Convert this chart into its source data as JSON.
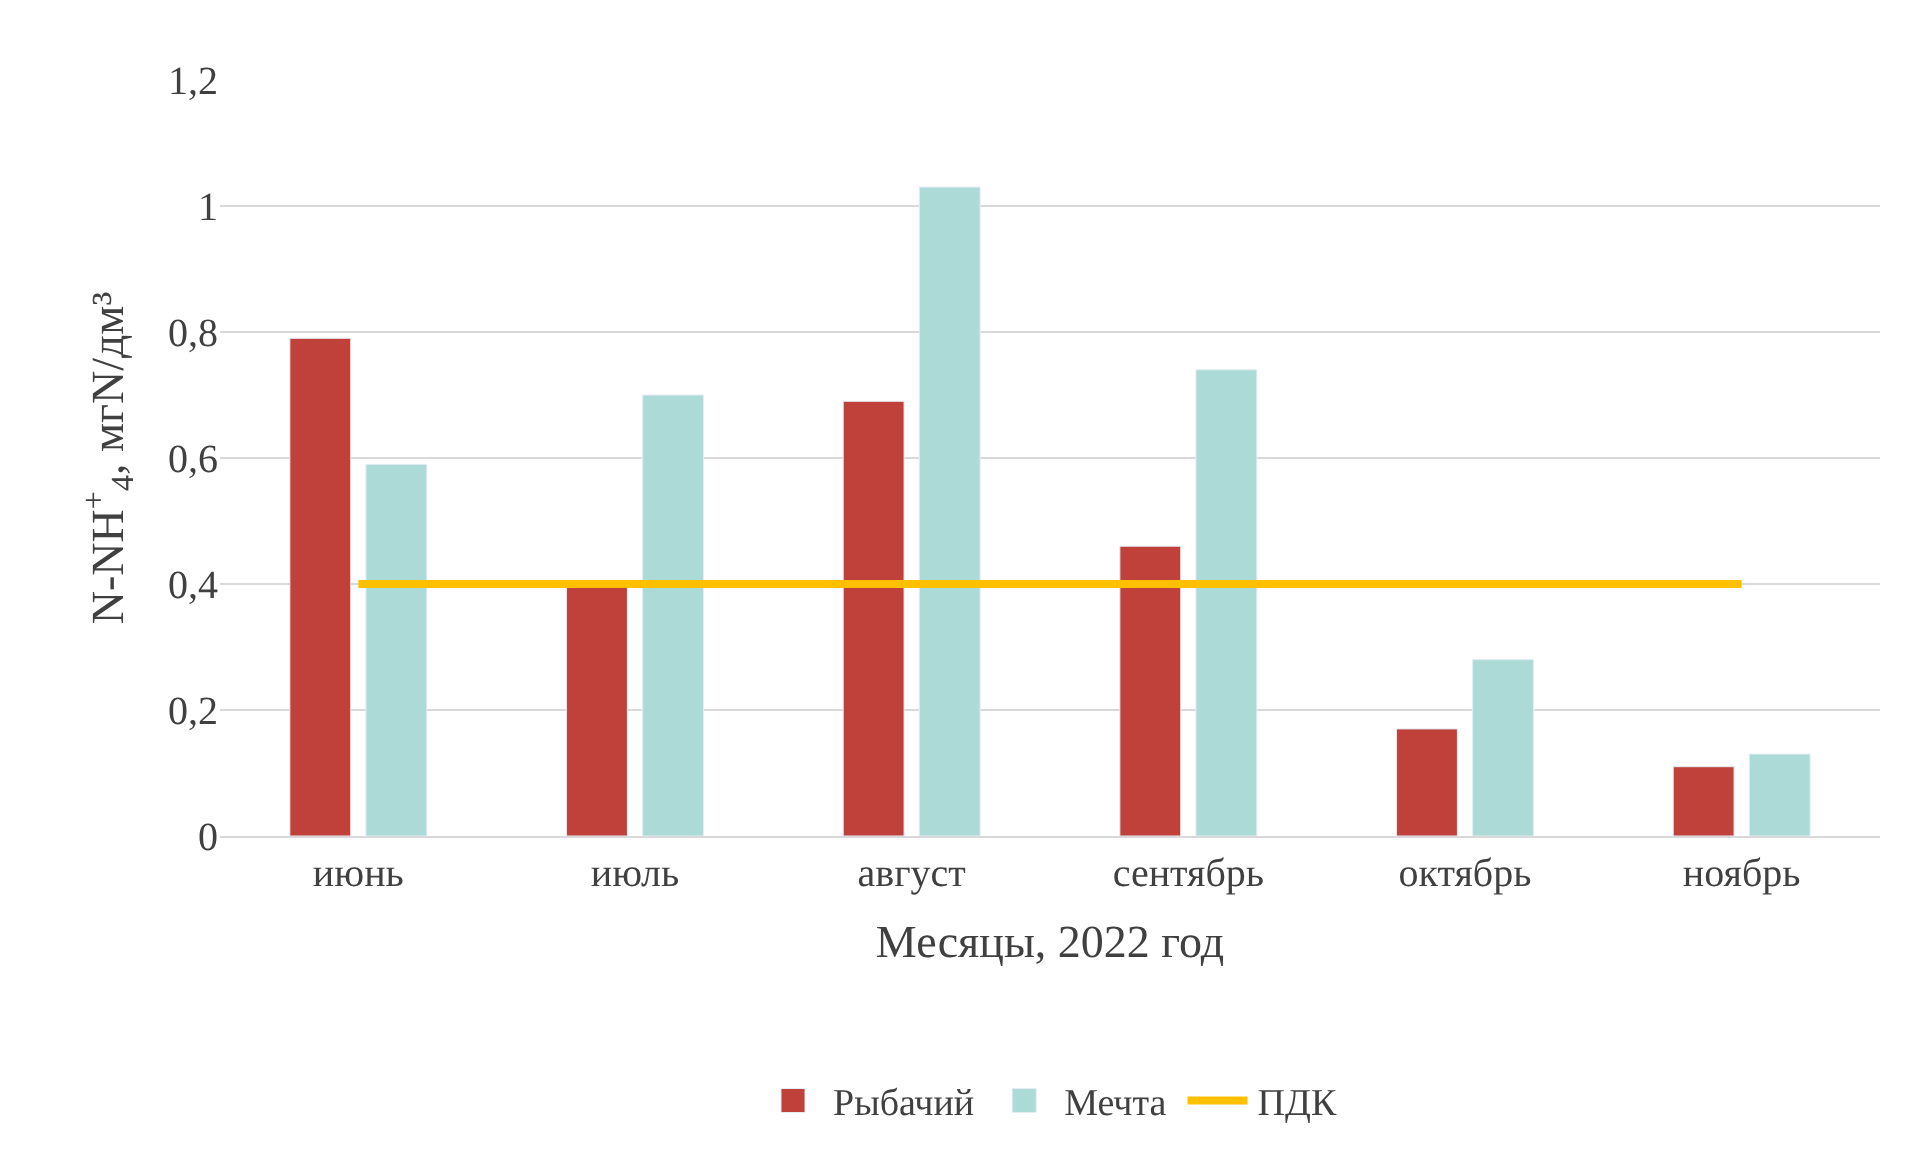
{
  "chart_data": {
    "type": "bar",
    "xlabel": "Месяцы, 2022 год",
    "ylabel": "N-NH$^{+}$$_{4}$, мгN/дм³",
    "categories": [
      "июнь",
      "июль",
      "август",
      "сентябрь",
      "октябрь",
      "ноябрь"
    ],
    "series": [
      {
        "name": "Рыбачий",
        "color": "#c0403a",
        "values": [
          0.79,
          0.4,
          0.69,
          0.46,
          0.17,
          0.11
        ]
      },
      {
        "name": "Мечта",
        "color": "#acdbd7",
        "values": [
          0.59,
          0.7,
          1.03,
          0.74,
          0.28,
          0.13
        ]
      },
      {
        "name": "ПДК",
        "color": "#ffc000",
        "type": "line",
        "values": [
          0.4,
          0.4,
          0.4,
          0.4,
          0.4,
          0.4
        ]
      }
    ],
    "ylim": [
      0,
      1.2
    ],
    "yticks": [
      0,
      {
        "value": 0.2,
        "label": "0,2"
      },
      {
        "value": 0.4,
        "label": "0,4"
      },
      {
        "value": 0.6,
        "label": "0,6"
      },
      {
        "value": 0.8,
        "label": "0,8"
      },
      1,
      {
        "value": 1.2,
        "label": "1,2"
      }
    ],
    "grid": "y",
    "legend": "bottom",
    "marker": "none"
  }
}
